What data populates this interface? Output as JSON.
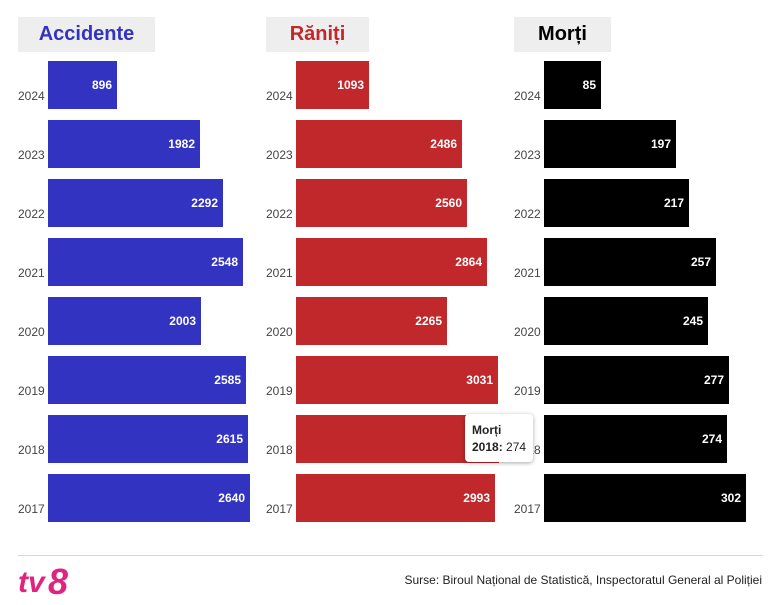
{
  "chart_data": [
    {
      "type": "bar",
      "orientation": "horizontal",
      "title": "Accidente",
      "color": "#3333c2",
      "categories": [
        "2024",
        "2023",
        "2022",
        "2021",
        "2020",
        "2019",
        "2018",
        "2017"
      ],
      "values": [
        896,
        1982,
        2292,
        2548,
        2003,
        2585,
        2615,
        2640
      ],
      "xlim": [
        0,
        2640
      ]
    },
    {
      "type": "bar",
      "orientation": "horizontal",
      "title": "Răniți",
      "color": "#c0282b",
      "categories": [
        "2024",
        "2023",
        "2022",
        "2021",
        "2020",
        "2019",
        "2018",
        "2017"
      ],
      "values": [
        1093,
        2486,
        2560,
        2864,
        2265,
        3031,
        3040,
        2993
      ],
      "xlim": [
        0,
        3031
      ]
    },
    {
      "type": "bar",
      "orientation": "horizontal",
      "title": "Morți",
      "color": "#000000",
      "categories": [
        "2024",
        "2023",
        "2022",
        "2021",
        "2020",
        "2019",
        "2018",
        "2017"
      ],
      "values": [
        85,
        197,
        217,
        257,
        245,
        277,
        274,
        302
      ],
      "xlim": [
        0,
        302
      ]
    }
  ],
  "tooltip": {
    "title": "Morți",
    "year": "2018:",
    "value": "274"
  },
  "logo": {
    "text": "tv8",
    "color": "#e2237e"
  },
  "source": "Surse: Biroul Național de Statistică, Inspectoratul General al Poliției"
}
